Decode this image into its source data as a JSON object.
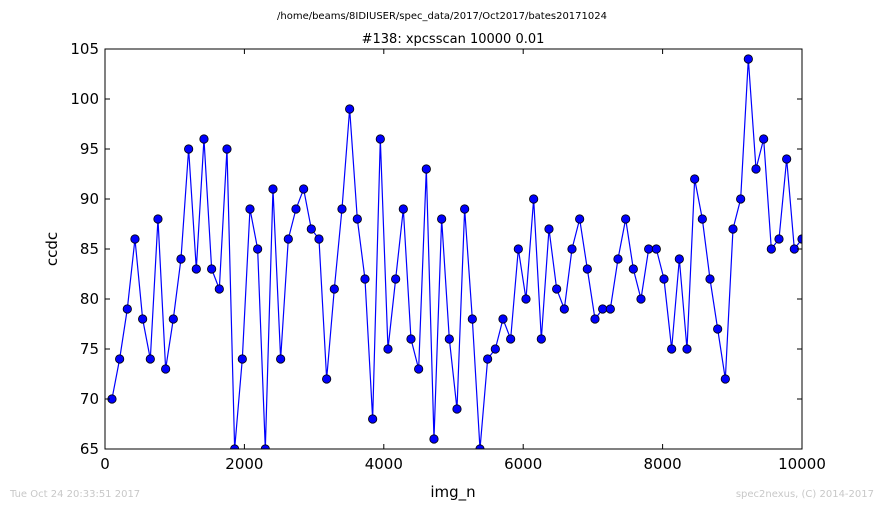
{
  "figure": {
    "path_title": "/home/beams/8IDIUSER/spec_data/2017/Oct2017/bates20171024",
    "footer_left": "Tue Oct 24 20:33:51 2017",
    "footer_right": "spec2nexus, (C) 2014-2017"
  },
  "colors": {
    "series": "#0000ff",
    "axes": "#000000",
    "background": "#ffffff",
    "footer": "#c8c8c8"
  },
  "chart_data": {
    "type": "line",
    "title": "#138: xpcsscan 10000 0.01",
    "xlabel": "img_n",
    "ylabel": "ccdc",
    "xlim": [
      0,
      10000
    ],
    "ylim": [
      65,
      105
    ],
    "xticks": [
      0,
      2000,
      4000,
      6000,
      8000,
      10000
    ],
    "yticks": [
      65,
      70,
      75,
      80,
      85,
      90,
      95,
      100,
      105
    ],
    "grid": false,
    "markers": "circle",
    "series": [
      {
        "x": [
          100,
          210,
          320,
          430,
          540,
          650,
          760,
          870,
          980,
          1090,
          1200,
          1310,
          1420,
          1530,
          1640,
          1750,
          1860,
          1970,
          2080,
          2190,
          2300,
          2410,
          2520,
          2630,
          2740,
          2850,
          2960,
          3070,
          3180,
          3290,
          3400,
          3510,
          3620,
          3730,
          3840,
          3950,
          4060,
          4170,
          4280,
          4390,
          4500,
          4610,
          4720,
          4830,
          4940,
          5050,
          5160,
          5270,
          5380,
          5490,
          5600,
          5710,
          5820,
          5930,
          6040,
          6150,
          6260,
          6370,
          6480,
          6590,
          6700,
          6810,
          6920,
          7030,
          7140,
          7250,
          7360,
          7470,
          7580,
          7690,
          7800,
          7910,
          8020,
          8130,
          8240,
          8350,
          8460,
          8570,
          8680,
          8790,
          8900,
          9010,
          9120,
          9230,
          9340,
          9450,
          9560,
          9670,
          9780,
          9890,
          10000
        ],
        "y": [
          70,
          74,
          79,
          86,
          78,
          74,
          88,
          73,
          78,
          84,
          95,
          83,
          96,
          83,
          81,
          95,
          65,
          74,
          89,
          85,
          65,
          91,
          74,
          86,
          89,
          91,
          87,
          86,
          72,
          81,
          89,
          99,
          88,
          82,
          68,
          96,
          75,
          82,
          89,
          76,
          73,
          93,
          66,
          88,
          76,
          69,
          89,
          78,
          65,
          74,
          75,
          78,
          76,
          85,
          80,
          90,
          76,
          87,
          81,
          79,
          85,
          88,
          83,
          78,
          79,
          79,
          84,
          88,
          83,
          80,
          85,
          85,
          82,
          75,
          84,
          75,
          92,
          88,
          82,
          77,
          72,
          87,
          90,
          104,
          93,
          96,
          85,
          86,
          94,
          85,
          86
        ]
      }
    ]
  }
}
